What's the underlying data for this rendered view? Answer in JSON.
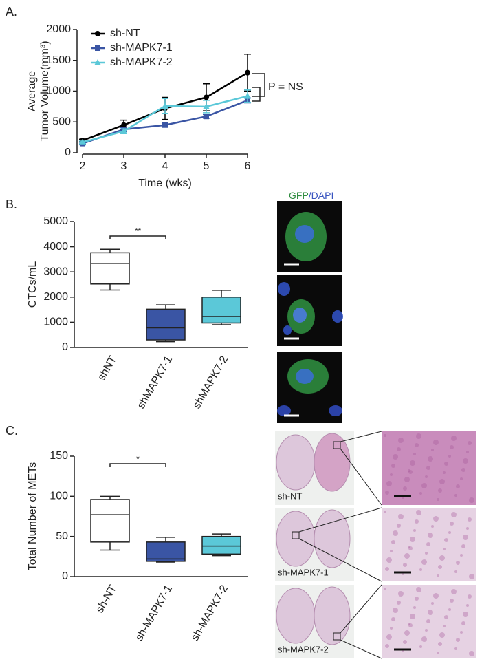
{
  "chart_data": [
    {
      "type": "line",
      "panel_label": "A.",
      "y_label": [
        "Average",
        "Tumor Volume(mm³)"
      ],
      "x_label": "Time (wks)",
      "x": [
        2,
        3,
        4,
        5,
        6
      ],
      "xlim": [
        2,
        6
      ],
      "xticks": [
        2,
        3,
        4,
        5,
        6
      ],
      "ylim": [
        0,
        2000
      ],
      "yticks": [
        0,
        500,
        1000,
        1500,
        2000
      ],
      "series": [
        {
          "name": "sh-NT",
          "color": "#000000",
          "marker": "circle",
          "values": [
            200,
            450,
            720,
            900,
            1300
          ],
          "errors": [
            20,
            80,
            180,
            220,
            300
          ]
        },
        {
          "name": "sh-MAPK7-1",
          "color": "#3a55a4",
          "marker": "square",
          "values": [
            150,
            380,
            450,
            590,
            850
          ],
          "errors": [
            20,
            30,
            30,
            30,
            40
          ]
        },
        {
          "name": "sh-MAPK7-2",
          "color": "#5bc8d8",
          "marker": "triangle",
          "values": [
            170,
            350,
            760,
            750,
            920
          ],
          "errors": [
            20,
            40,
            120,
            100,
            100
          ]
        }
      ],
      "annotation": "P = NS",
      "legend": "upper left"
    },
    {
      "type": "box",
      "panel_label": "B.",
      "y_label": "CTCs/mL",
      "categories": [
        "shNT",
        "shMAPK7-1",
        "shMAPK7-2"
      ],
      "colors": [
        "#ffffff",
        "#3a55a4",
        "#5bc8d8"
      ],
      "ylim": [
        0,
        5000
      ],
      "yticks": [
        0,
        1000,
        2000,
        3000,
        4000,
        5000
      ],
      "boxes": [
        {
          "min": 2280,
          "q1": 2520,
          "median": 3330,
          "q3": 3760,
          "max": 3900
        },
        {
          "min": 230,
          "q1": 300,
          "median": 780,
          "q3": 1520,
          "max": 1690
        },
        {
          "min": 900,
          "q1": 970,
          "median": 1230,
          "q3": 2000,
          "max": 2270
        }
      ],
      "significance": "**",
      "image_title": [
        "GFP",
        "/DAPI"
      ]
    },
    {
      "type": "box",
      "panel_label": "C.",
      "y_label": "Total Number of METs",
      "categories": [
        "sh-NT",
        "sh-MAPK7-1",
        "sh-MAPK7-2"
      ],
      "colors": [
        "#ffffff",
        "#3a55a4",
        "#5bc8d8"
      ],
      "ylim": [
        0,
        150
      ],
      "yticks": [
        0,
        50,
        100,
        150
      ],
      "boxes": [
        {
          "min": 33,
          "q1": 43,
          "median": 77,
          "q3": 96,
          "max": 100
        },
        {
          "min": 18,
          "q1": 19,
          "median": 22,
          "q3": 43,
          "max": 49
        },
        {
          "min": 26,
          "q1": 28,
          "median": 38,
          "q3": 50,
          "max": 53
        }
      ],
      "significance": "*",
      "image_labels": [
        "sh-NT",
        "sh-MAPK7-1",
        "sh-MAPK7-2"
      ]
    }
  ]
}
